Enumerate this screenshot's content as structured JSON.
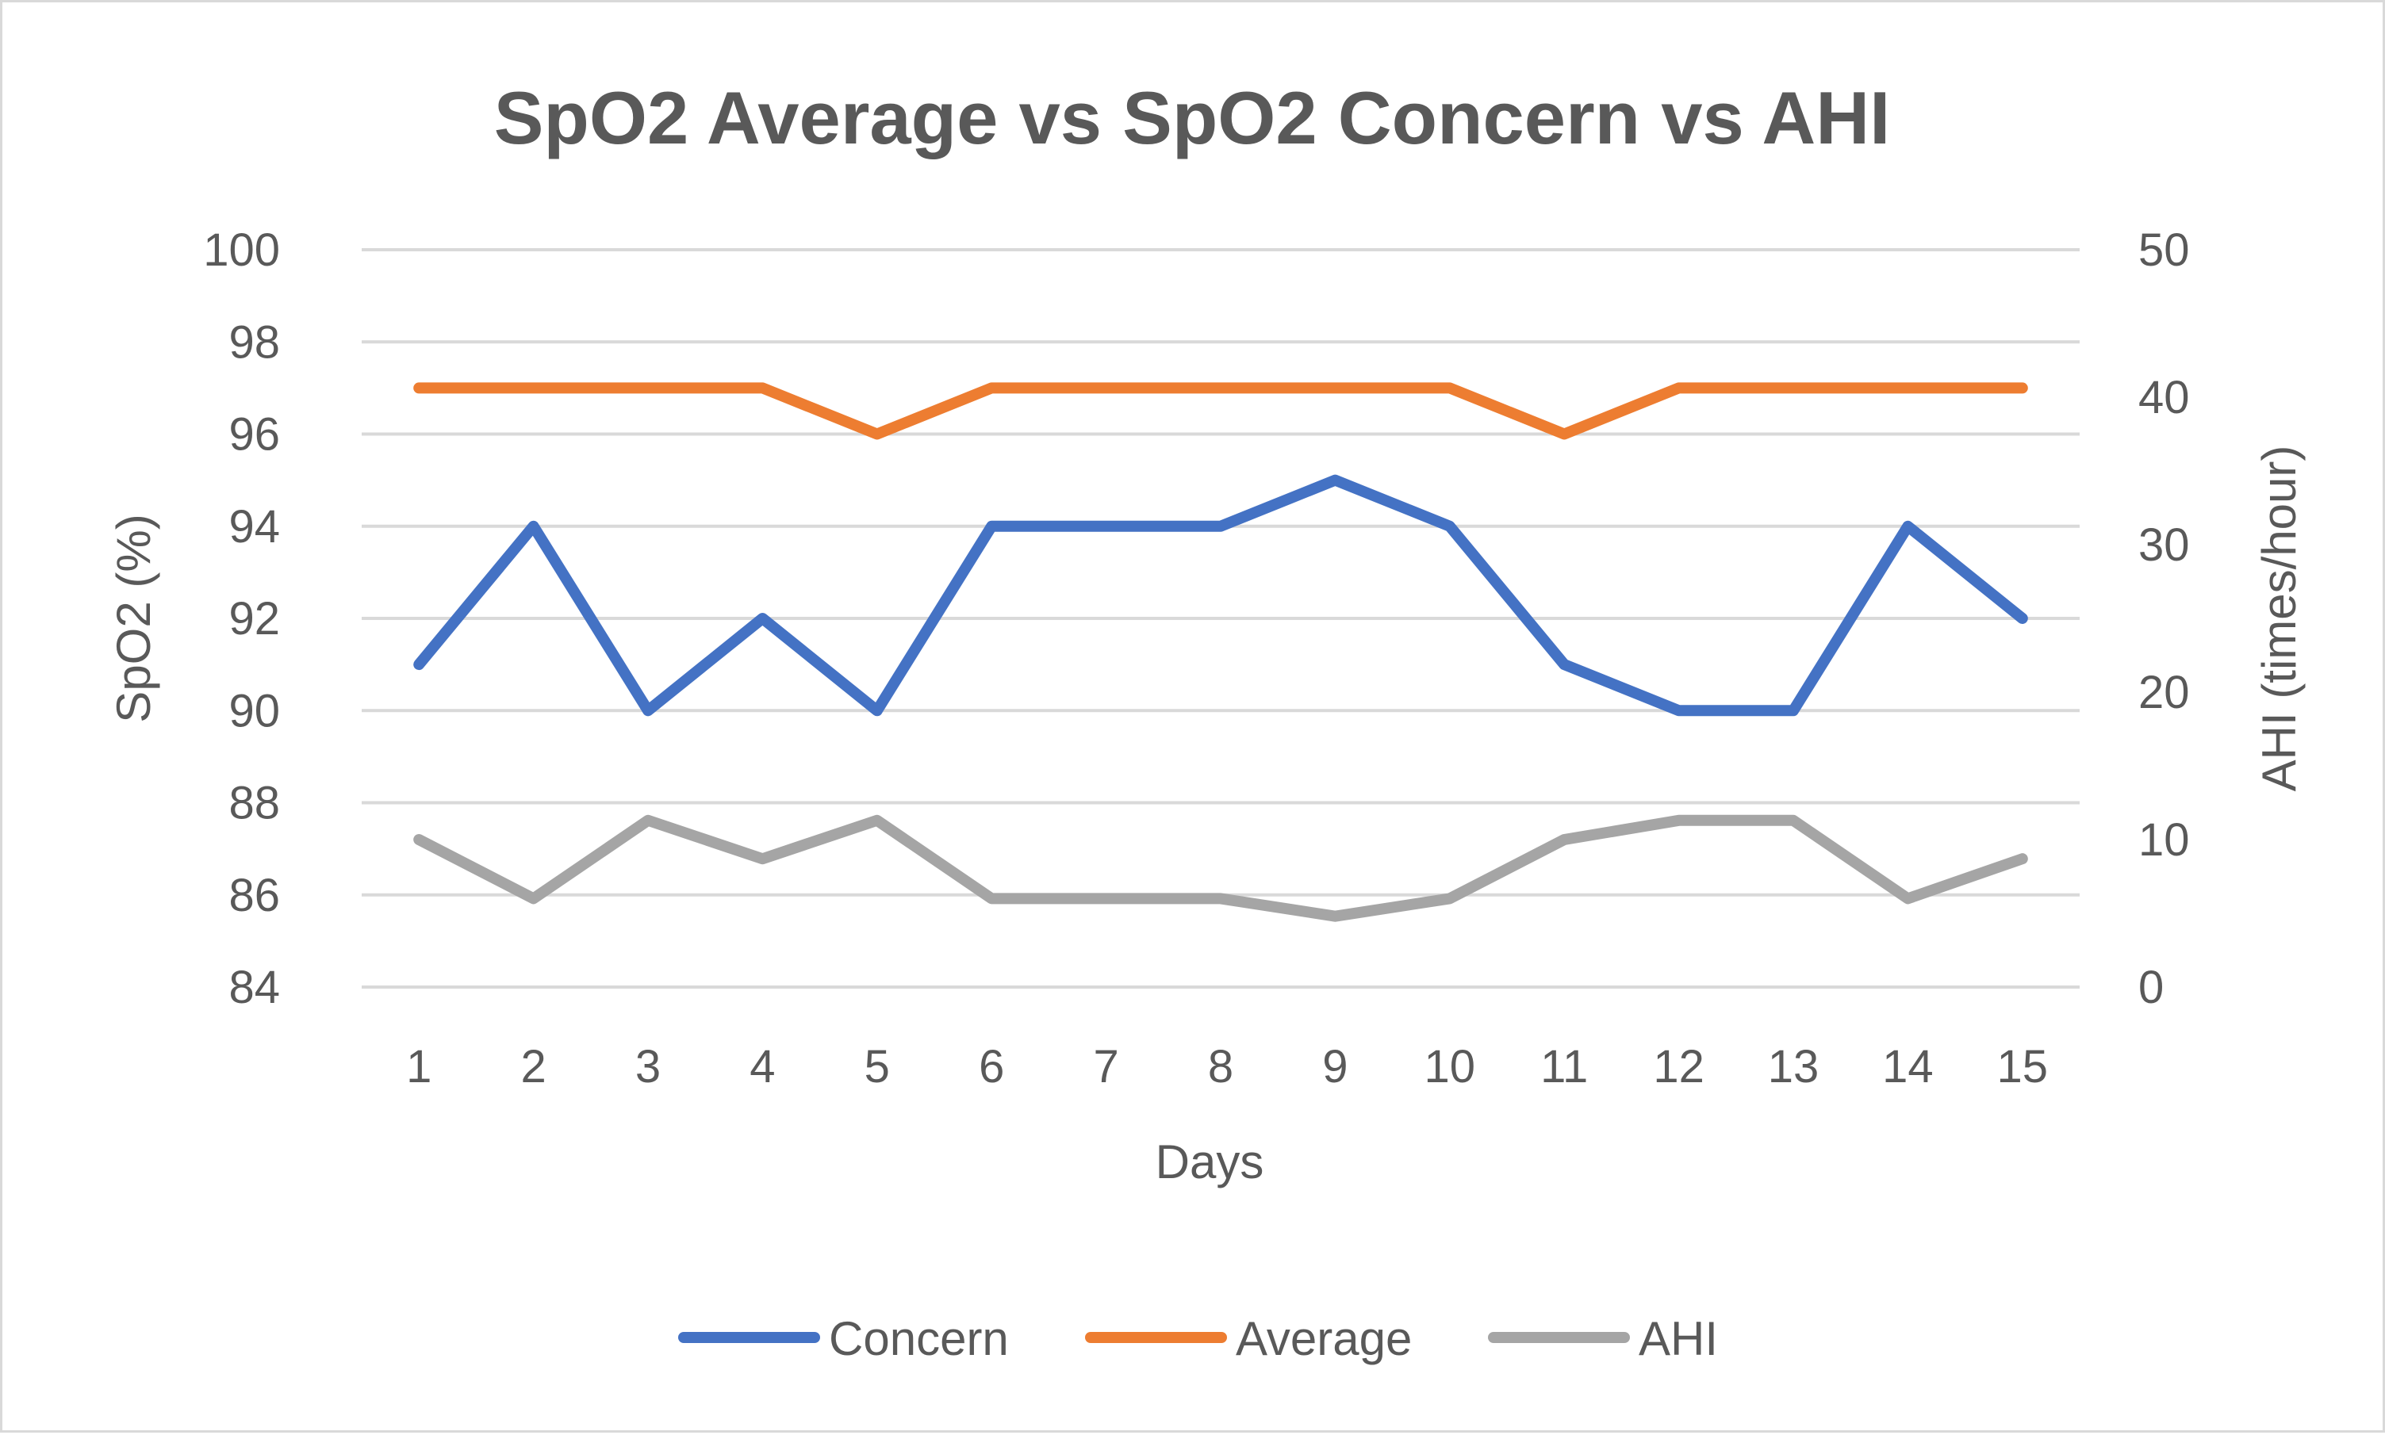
{
  "chart_data": {
    "type": "line",
    "title": "SpO2 Average vs SpO2 Concern vs AHI",
    "xlabel": "Days",
    "ylabel": "SpO2 (%)",
    "y2label": "AHI (times/hour)",
    "categories": [
      "1",
      "2",
      "3",
      "4",
      "5",
      "6",
      "7",
      "8",
      "9",
      "10",
      "11",
      "12",
      "13",
      "14",
      "15"
    ],
    "ylim": [
      84,
      100
    ],
    "y_ticks": [
      "84",
      "86",
      "88",
      "90",
      "92",
      "94",
      "96",
      "98",
      "100"
    ],
    "y2lim": [
      0,
      50
    ],
    "y2_ticks": [
      "0",
      "10",
      "20",
      "30",
      "40",
      "50"
    ],
    "grid": true,
    "legend_position": "bottom",
    "series": [
      {
        "name": "Concern",
        "axis": "left",
        "color": "#4472c4",
        "values": [
          91,
          94,
          90,
          92,
          90,
          94,
          94,
          94,
          95,
          94,
          91,
          90,
          90,
          94,
          92
        ]
      },
      {
        "name": "Average",
        "axis": "left",
        "color": "#ed7d31",
        "values": [
          97,
          97,
          97,
          97,
          96,
          97,
          97,
          97,
          97,
          97,
          96,
          97,
          97,
          97,
          97
        ]
      },
      {
        "name": "AHI",
        "axis": "right",
        "color": "#a5a5a5",
        "values": [
          10,
          6,
          11.3,
          8.7,
          11.3,
          6,
          6,
          6,
          4.8,
          6,
          10,
          11.3,
          11.3,
          6,
          8.7
        ]
      }
    ]
  }
}
